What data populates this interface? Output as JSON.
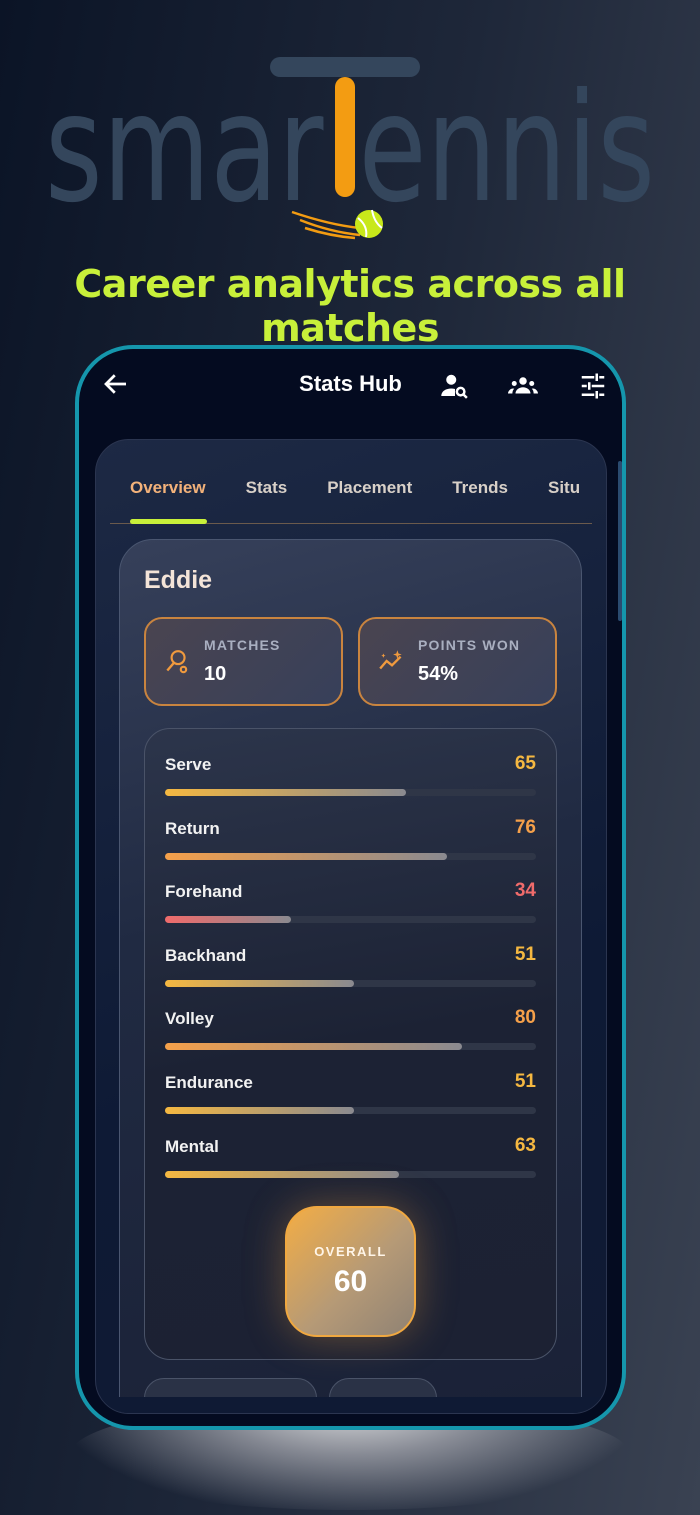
{
  "brand": {
    "logo_text": "smarTennis",
    "tagline": "Career analytics across all matches"
  },
  "appbar": {
    "title": "Stats Hub",
    "icons": [
      "arrow-left-icon",
      "person-search-icon",
      "group-icon",
      "tune-icon"
    ]
  },
  "tabs": [
    {
      "label": "Overview",
      "active": true
    },
    {
      "label": "Stats"
    },
    {
      "label": "Placement"
    },
    {
      "label": "Trends"
    },
    {
      "label": "Situ"
    }
  ],
  "player": {
    "name": "Eddie",
    "kpis": [
      {
        "label": "MATCHES",
        "value": "10",
        "icon": "tennis-racket-icon"
      },
      {
        "label": "POINTS WON",
        "value": "54%",
        "icon": "sparkle-trend-icon"
      }
    ],
    "skills": [
      {
        "label": "Serve",
        "value": 65,
        "color": "#f5b841"
      },
      {
        "label": "Return",
        "value": 76,
        "color": "#f5a04a"
      },
      {
        "label": "Forehand",
        "value": 34,
        "color": "#f06b6b"
      },
      {
        "label": "Backhand",
        "value": 51,
        "color": "#f5b841"
      },
      {
        "label": "Volley",
        "value": 80,
        "color": "#f5a04a"
      },
      {
        "label": "Endurance",
        "value": 51,
        "color": "#f5b841"
      },
      {
        "label": "Mental",
        "value": 63,
        "color": "#f5b841"
      }
    ],
    "overall": {
      "label": "OVERALL",
      "value": "60"
    }
  },
  "colors": {
    "accent": "#c8f03a",
    "orange": "#f39c12",
    "frame": "#1596ac"
  }
}
